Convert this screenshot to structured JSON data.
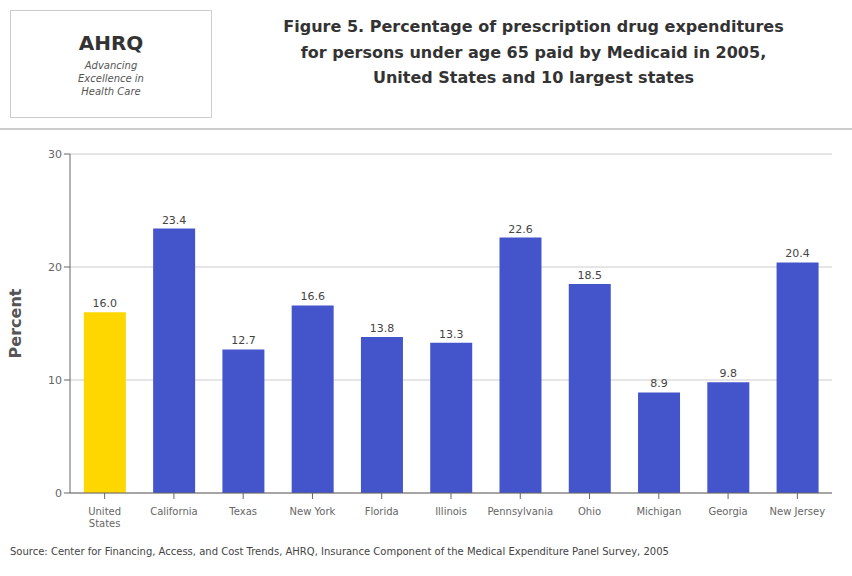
{
  "chart_data": {
    "type": "bar",
    "title": "Figure 5. Percentage of prescription drug expenditures\nfor persons under age 65 paid by Medicaid in 2005,\nUnited States and 10 largest states",
    "categories": [
      "United\nStates",
      "California",
      "Texas",
      "New York",
      "Florida",
      "Illinois",
      "Pennsylvania",
      "Ohio",
      "Michigan",
      "Georgia",
      "New Jersey"
    ],
    "values": [
      16.0,
      23.4,
      12.7,
      16.6,
      13.8,
      13.3,
      22.6,
      18.5,
      8.9,
      9.8,
      20.4
    ],
    "value_labels": [
      "16.0",
      "23.4",
      "12.7",
      "16.6",
      "13.8",
      "13.3",
      "22.6",
      "18.5",
      "8.9",
      "9.8",
      "20.4"
    ],
    "colors": [
      "#FFD700",
      "#4455CC",
      "#4455CC",
      "#4455CC",
      "#4455CC",
      "#4455CC",
      "#4455CC",
      "#4455CC",
      "#4455CC",
      "#4455CC",
      "#4455CC"
    ],
    "ylabel": "Percent",
    "ylim": [
      0,
      30
    ],
    "yticks": [
      0,
      10,
      20,
      30
    ],
    "grid": true,
    "data_labels": true,
    "annotations": [
      "AHRQ",
      "Advancing\nExcellence in\nHealth Care",
      "Source: Center for Financing, Access, and Cost Trends, AHRQ, Insurance Component of the Medical Expenditure Panel Survey, 2005"
    ]
  }
}
